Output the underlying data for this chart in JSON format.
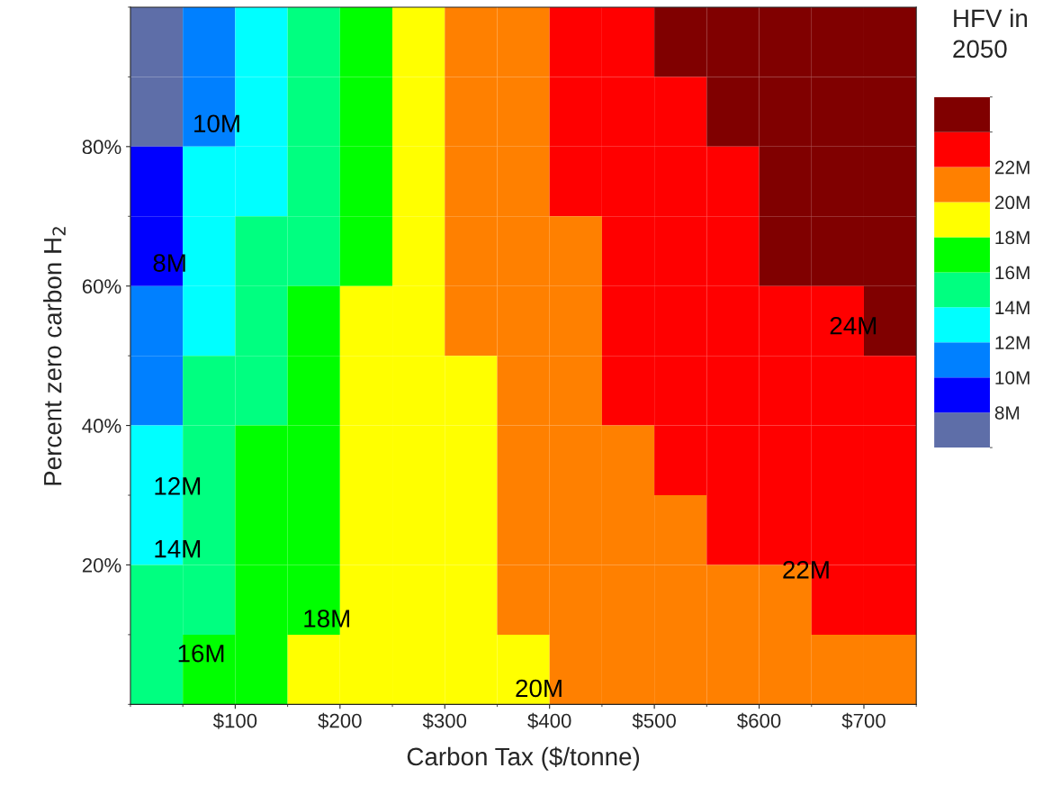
{
  "chart_data": {
    "type": "heatmap",
    "xlabel": "Carbon Tax ($/tonne)",
    "ylabel": "Percent zero carbon H$_{2}$",
    "clabel": "HFV in\n2050",
    "x": [
      25,
      75,
      125,
      175,
      225,
      275,
      325,
      375,
      425,
      475,
      525,
      575,
      625,
      675,
      725
    ],
    "y": [
      95,
      85,
      75,
      65,
      55,
      45,
      35,
      25,
      15,
      5
    ],
    "cells": [
      [
        7,
        11,
        13,
        15,
        17,
        19,
        21,
        21,
        23,
        23,
        25,
        25,
        25,
        25,
        25
      ],
      [
        7,
        11,
        13,
        15,
        17,
        19,
        21,
        21,
        23,
        23,
        23,
        25,
        25,
        25,
        25
      ],
      [
        9,
        13,
        13,
        15,
        17,
        19,
        21,
        21,
        23,
        23,
        23,
        23,
        25,
        25,
        25
      ],
      [
        9,
        13,
        15,
        15,
        17,
        19,
        21,
        21,
        21,
        23,
        23,
        23,
        25,
        25,
        25
      ],
      [
        11,
        13,
        15,
        17,
        19,
        19,
        21,
        21,
        21,
        23,
        23,
        23,
        23,
        23,
        25
      ],
      [
        11,
        15,
        15,
        17,
        19,
        19,
        19,
        21,
        21,
        23,
        23,
        23,
        23,
        23,
        23
      ],
      [
        13,
        15,
        17,
        17,
        19,
        19,
        19,
        21,
        21,
        21,
        23,
        23,
        23,
        23,
        23
      ],
      [
        13,
        15,
        17,
        17,
        19,
        19,
        19,
        21,
        21,
        21,
        21,
        23,
        23,
        23,
        23
      ],
      [
        15,
        15,
        17,
        17,
        19,
        19,
        19,
        21,
        21,
        21,
        21,
        21,
        21,
        23,
        23
      ],
      [
        15,
        17,
        17,
        19,
        19,
        19,
        19,
        19,
        21,
        21,
        21,
        21,
        21,
        21,
        21
      ]
    ],
    "colors": [
      "#5e6ea8",
      "#0000ff",
      "#0080ff",
      "#00ffff",
      "#00ff80",
      "#00ff00",
      "#ffff00",
      "#ff8000",
      "#ff0000",
      "#800000"
    ],
    "clim": [
      6,
      26
    ],
    "cticks": [
      {
        "value": 8,
        "label": "8M"
      },
      {
        "value": 10,
        "label": "10M"
      },
      {
        "value": 12,
        "label": "12M"
      },
      {
        "value": 14,
        "label": "14M"
      },
      {
        "value": 16,
        "label": "16M"
      },
      {
        "value": 18,
        "label": "18M"
      },
      {
        "value": 20,
        "label": "20M"
      },
      {
        "value": 22,
        "label": "22M"
      }
    ],
    "xlim": [
      0,
      750
    ],
    "ylim": [
      0,
      100
    ],
    "xticks": [
      {
        "value": 100,
        "label": "$100"
      },
      {
        "value": 200,
        "label": "$200"
      },
      {
        "value": 300,
        "label": "$300"
      },
      {
        "value": 400,
        "label": "$400"
      },
      {
        "value": 500,
        "label": "$500"
      },
      {
        "value": 600,
        "label": "$600"
      },
      {
        "value": 700,
        "label": "$700"
      }
    ],
    "yticks": [
      {
        "value": 20,
        "label": "20%"
      },
      {
        "value": 40,
        "label": "40%"
      },
      {
        "value": 60,
        "label": "60%"
      },
      {
        "value": 80,
        "label": "80%"
      }
    ],
    "annotations": [
      "10M",
      "8M",
      "12M",
      "14M",
      "16M",
      "18M",
      "20M",
      "22M",
      "24M"
    ],
    "grid": false
  }
}
